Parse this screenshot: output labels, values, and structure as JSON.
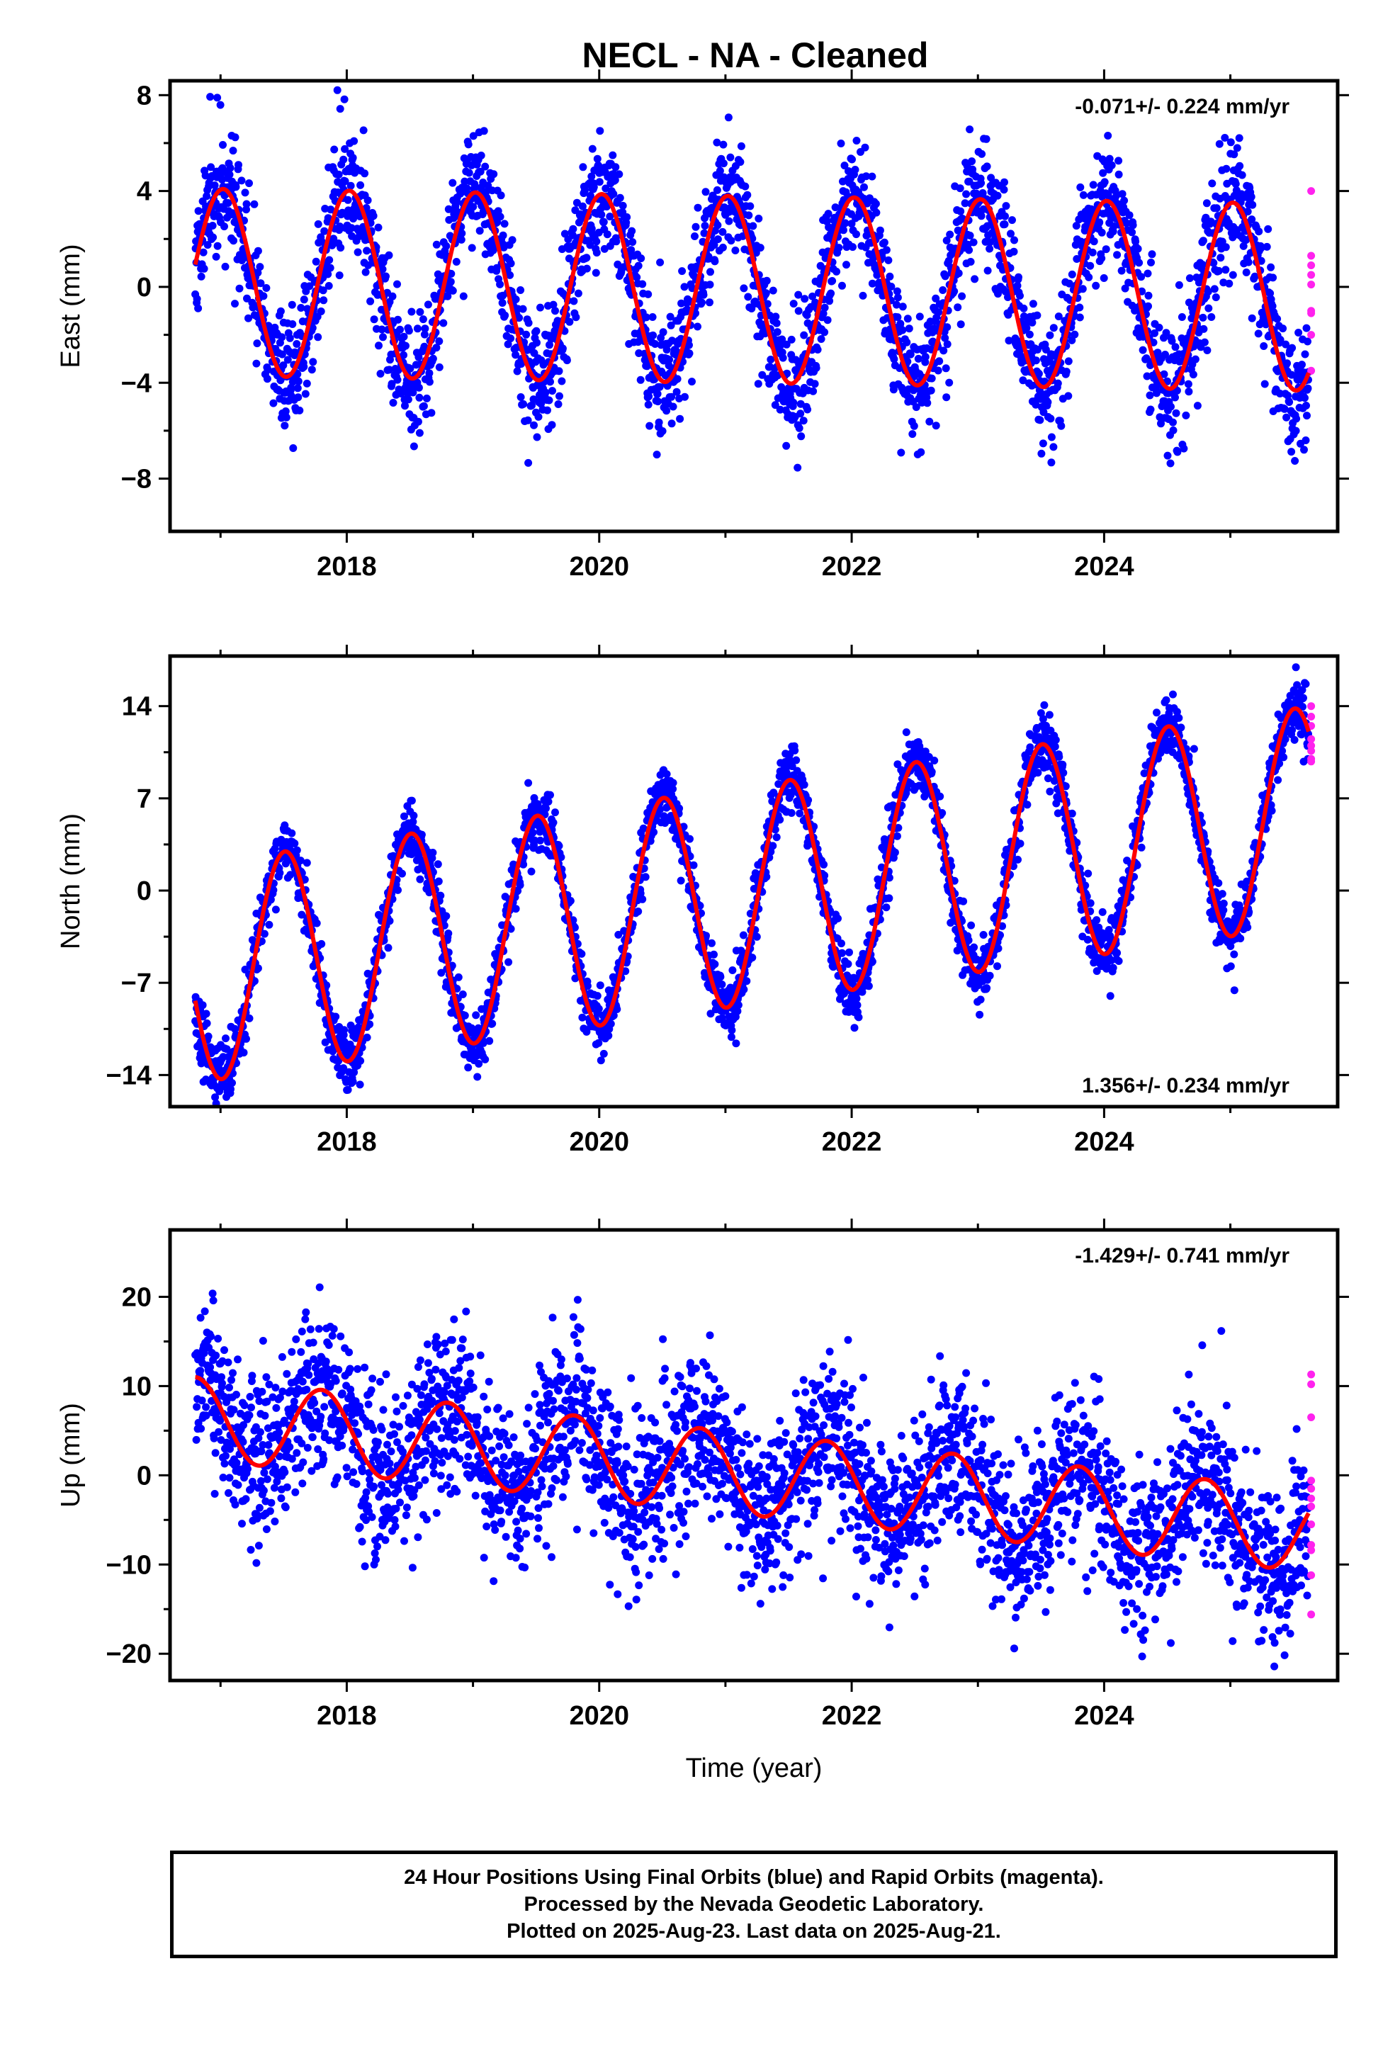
{
  "title": "NECL  - NA - Cleaned",
  "colors": {
    "final": "#0000ff",
    "rapid": "#ff22ee",
    "model": "#ff0000",
    "axis": "#000000"
  },
  "footer": {
    "line1": "24 Hour Positions Using Final Orbits (blue) and Rapid Orbits (magenta).",
    "line2": "Processed by the Nevada Geodetic Laboratory.",
    "line3": "Plotted on 2025-Aug-23. Last data on 2025-Aug-21."
  },
  "chart_data": [
    {
      "type": "scatter",
      "component": "east",
      "ylabel": "East (mm)",
      "xlabel": "",
      "xlim": [
        2016.6,
        2025.85
      ],
      "ylim": [
        -10.2,
        8.6
      ],
      "xticks": [
        2018,
        2020,
        2022,
        2024
      ],
      "yticks": [
        -8,
        -4,
        0,
        4,
        8
      ],
      "rate_label": "-0.071+/- 0.224 mm/yr",
      "rate_position": "top-right",
      "series": [
        {
          "name": "Final Orbits",
          "color": "#0000ff",
          "model": {
            "x_start": 2016.8,
            "x_end": 2025.62,
            "offset": -0.1,
            "trend": -0.071,
            "t0": 2021.0,
            "amplitude": 3.9,
            "peak_phase": 0.02
          },
          "noise_sd": 1.3,
          "spacing_years": 0.0028,
          "seed": 11
        },
        {
          "name": "Rapid Orbits",
          "color": "#ff22ee",
          "points": [
            [
              2025.64,
              4.0
            ],
            [
              2025.64,
              1.3
            ],
            [
              2025.64,
              0.9
            ],
            [
              2025.64,
              0.5
            ],
            [
              2025.64,
              0.1
            ],
            [
              2025.64,
              -1.0
            ],
            [
              2025.64,
              -1.1
            ],
            [
              2025.64,
              -2.0
            ],
            [
              2025.64,
              -3.5
            ]
          ]
        }
      ],
      "model_line": {
        "name": "Model fit",
        "color": "#ff0000",
        "x_start": 2016.8,
        "x_end": 2025.62
      }
    },
    {
      "type": "scatter",
      "component": "north",
      "ylabel": "North (mm)",
      "xlabel": "",
      "xlim": [
        2016.6,
        2025.85
      ],
      "ylim": [
        -16.4,
        17.8
      ],
      "xticks": [
        2018,
        2020,
        2022,
        2024
      ],
      "yticks": [
        -14,
        -7,
        0,
        7,
        14
      ],
      "rate_label": "1.356+/- 0.234 mm/yr",
      "rate_position": "bottom-right",
      "series": [
        {
          "name": "Final Orbits",
          "color": "#0000ff",
          "model": {
            "x_start": 2016.8,
            "x_end": 2025.62,
            "offset": -0.6,
            "trend": 1.356,
            "t0": 2021.0,
            "amplitude": 8.3,
            "peak_phase": 0.51
          },
          "noise_sd": 1.2,
          "spacing_years": 0.0028,
          "seed": 23
        },
        {
          "name": "Rapid Orbits",
          "color": "#ff22ee",
          "points": [
            [
              2025.64,
              14.0
            ],
            [
              2025.64,
              13.2
            ],
            [
              2025.64,
              12.5
            ],
            [
              2025.64,
              11.5
            ],
            [
              2025.64,
              11.0
            ],
            [
              2025.64,
              10.6
            ],
            [
              2025.64,
              10.0
            ],
            [
              2025.64,
              9.8
            ]
          ]
        }
      ],
      "model_line": {
        "name": "Model fit",
        "color": "#ff0000",
        "x_start": 2016.8,
        "x_end": 2025.62
      }
    },
    {
      "type": "scatter",
      "component": "up",
      "ylabel": "Up (mm)",
      "xlabel": "Time (year)",
      "xlim": [
        2016.6,
        2025.85
      ],
      "ylim": [
        -23,
        27.5
      ],
      "xticks": [
        2018,
        2020,
        2022,
        2024
      ],
      "yticks": [
        -20,
        -10,
        0,
        10,
        20
      ],
      "rate_label": "-1.429+/- 0.741 mm/yr",
      "rate_position": "top-right",
      "series": [
        {
          "name": "Final Orbits",
          "color": "#0000ff",
          "model": {
            "x_start": 2016.8,
            "x_end": 2025.62,
            "offset": 0.4,
            "trend": -1.429,
            "t0": 2021.0,
            "amplitude": 4.6,
            "peak_phase": 0.8
          },
          "noise_sd": 4.6,
          "spacing_years": 0.0028,
          "seed": 37
        },
        {
          "name": "Rapid Orbits",
          "color": "#ff22ee",
          "points": [
            [
              2025.64,
              11.3
            ],
            [
              2025.64,
              10.2
            ],
            [
              2025.64,
              6.5
            ],
            [
              2025.64,
              -0.6
            ],
            [
              2025.64,
              -1.5
            ],
            [
              2025.64,
              -2.6
            ],
            [
              2025.64,
              -3.5
            ],
            [
              2025.64,
              -5.5
            ],
            [
              2025.64,
              -7.8
            ],
            [
              2025.64,
              -8.4
            ],
            [
              2025.64,
              -11.2
            ],
            [
              2025.64,
              -15.6
            ]
          ]
        }
      ],
      "model_line": {
        "name": "Model fit",
        "color": "#ff0000",
        "x_start": 2016.8,
        "x_end": 2025.62
      }
    }
  ]
}
